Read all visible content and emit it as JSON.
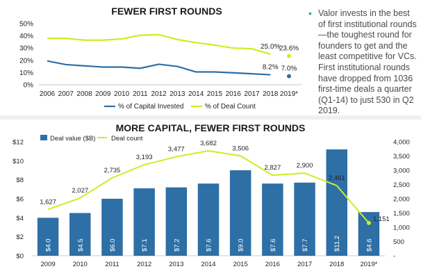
{
  "chart_data": [
    {
      "type": "line",
      "title": "FEWER FIRST ROUNDS",
      "x": [
        "2006",
        "2007",
        "2008",
        "2009",
        "2010",
        "2011",
        "2012",
        "2013",
        "2014",
        "2015",
        "2016",
        "2017",
        "2018",
        "2019*"
      ],
      "ylim": [
        0,
        50
      ],
      "y_ticks": [
        "0%",
        "10%",
        "20%",
        "30%",
        "40%",
        "50%"
      ],
      "series": [
        {
          "name": "% of Capital Invested",
          "color": "#2e6fa6",
          "values": [
            19.5,
            16.5,
            15.5,
            14.5,
            14.5,
            13.5,
            16.8,
            15.0,
            10.5,
            10.5,
            9.8,
            9.0,
            8.2,
            7.0
          ]
        },
        {
          "name": "% of Deal Count",
          "color": "#ccee22",
          "values": [
            38.0,
            38.0,
            36.5,
            36.5,
            37.5,
            40.5,
            41.0,
            37.0,
            34.5,
            32.5,
            30.0,
            29.5,
            25.0,
            23.6
          ]
        }
      ],
      "annotations": [
        {
          "series": 1,
          "index": 12,
          "label": "25.0%"
        },
        {
          "series": 1,
          "index": 13,
          "label": "23.6%"
        },
        {
          "series": 0,
          "index": 12,
          "label": "8.2%"
        },
        {
          "series": 0,
          "index": 13,
          "label": "7.0%"
        }
      ],
      "legend": "bottom"
    },
    {
      "type": "bar",
      "title": "MORE CAPITAL, FEWER FIRST ROUNDS",
      "categories": [
        "2009",
        "2010",
        "2011",
        "2012",
        "2013",
        "2014",
        "2015",
        "2016",
        "2017",
        "2018",
        "2019*"
      ],
      "series": [
        {
          "name": "Deal value ($B)",
          "color": "#2e6fa6",
          "values": [
            4.0,
            4.5,
            6.0,
            7.1,
            7.2,
            7.6,
            9.0,
            7.6,
            7.7,
            11.2,
            4.6
          ],
          "labels": [
            "$4.0",
            "$4.5",
            "$6.0",
            "$7.1",
            "$7.2",
            "$7.6",
            "$9.0",
            "$7.6",
            "$7.7",
            "$11.2",
            "$4.6"
          ]
        },
        {
          "name": "Deal count",
          "type": "line",
          "axis": "right",
          "color": "#ccee22",
          "values": [
            1627,
            2027,
            2735,
            3193,
            3477,
            3682,
            3506,
            2827,
            2900,
            2461,
            1151
          ],
          "labels": [
            "1,627",
            "2,027",
            "2,735",
            "3,193",
            "3,477",
            "3,682",
            "3,506",
            "2,827",
            "2,900",
            "2,461",
            "1,151"
          ]
        }
      ],
      "ylim_left": [
        0,
        12
      ],
      "ylim_right": [
        0,
        4000
      ],
      "left_ticks": [
        "$0",
        "$2",
        "$4",
        "$6",
        "$8",
        "$10",
        "$12"
      ],
      "right_ticks": [
        "-",
        "500",
        "1,000",
        "1,500",
        "2,000",
        "2,500",
        "3,000",
        "3,500",
        "4,000"
      ],
      "legend": "top-left"
    }
  ],
  "note": {
    "bullet": "•",
    "text": "Valor invests in the best of first institutional rounds—the toughest round for founders to get and the least competitive for VCs. First institutional rounds have dropped from 1036 first-time deals a quarter (Q1-14) to just 530 in Q2 2019."
  }
}
